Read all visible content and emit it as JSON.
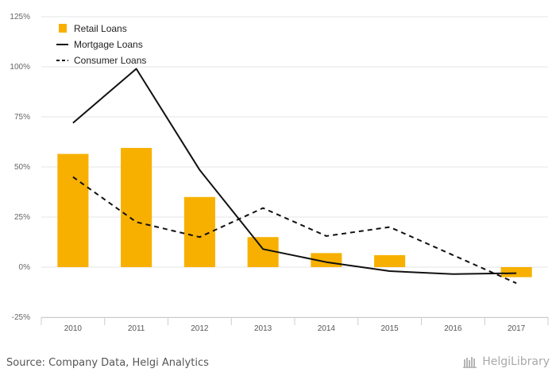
{
  "chart_data": {
    "type": "bar",
    "categories": [
      "2010",
      "2011",
      "2012",
      "2013",
      "2014",
      "2015",
      "2016",
      "2017"
    ],
    "series": [
      {
        "name": "Retail Loans",
        "kind": "bar",
        "color": "#f7b000",
        "values": [
          56.5,
          59.5,
          35,
          15,
          7,
          6,
          null,
          -5
        ]
      },
      {
        "name": "Mortgage Loans",
        "kind": "line",
        "style": "solid",
        "color": "#111111",
        "values": [
          72,
          99,
          48.5,
          9,
          2.5,
          -2,
          -3.5,
          -3
        ]
      },
      {
        "name": "Consumer Loans",
        "kind": "line",
        "style": "dashed",
        "color": "#111111",
        "values": [
          45,
          22.5,
          15,
          29.5,
          15.5,
          20,
          6,
          -8
        ]
      }
    ],
    "y_ticks": [
      "125%",
      "100%",
      "75%",
      "50%",
      "25%",
      "0%",
      "-25%"
    ],
    "y_tick_values": [
      125,
      100,
      75,
      50,
      25,
      0,
      -25
    ],
    "ylim": [
      -25,
      125
    ],
    "legend_position": "top-left",
    "grid": "horizontal"
  },
  "footer": {
    "source": "Source: Company Data, Helgi Analytics",
    "brand": "HelgiLibrary"
  }
}
